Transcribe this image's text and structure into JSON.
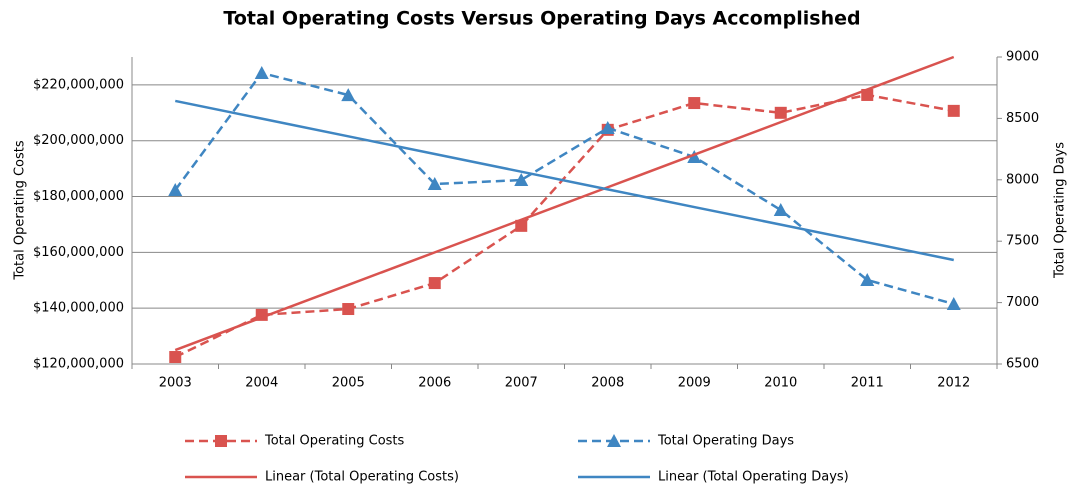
{
  "chart_data": {
    "type": "line",
    "title": "Total Operating Costs Versus Operating Days Accomplished",
    "y_label": "Total Operating Costs",
    "y2_label": "Total Operating Days",
    "categories": [
      "2003",
      "2004",
      "2005",
      "2006",
      "2007",
      "2008",
      "2009",
      "2010",
      "2011",
      "2012"
    ],
    "ylim": [
      120000000,
      230000000
    ],
    "yticks": [
      {
        "value": 120000000,
        "label": "$120,000,000"
      },
      {
        "value": 140000000,
        "label": "$140,000,000"
      },
      {
        "value": 160000000,
        "label": "$160,000,000"
      },
      {
        "value": 180000000,
        "label": "$180,000,000"
      },
      {
        "value": 200000000,
        "label": "$200,000,000"
      },
      {
        "value": 220000000,
        "label": "$220,000,000"
      }
    ],
    "y2lim": [
      6500,
      9000
    ],
    "y2ticks": [
      6500,
      7000,
      7500,
      8000,
      8500,
      9000
    ],
    "grid": true,
    "series": [
      {
        "name": "Total Operating Costs",
        "color": "#d9534f",
        "dashed": true,
        "marker": "square",
        "values": [
          122500000,
          137600000,
          139700000,
          149000000,
          169500000,
          203900000,
          213500000,
          210000000,
          216400000,
          210700000
        ]
      },
      {
        "name": "Total Operating Days",
        "color": "#3f86c2",
        "dashed": true,
        "marker": "triangle",
        "axis": "y2",
        "values": [
          7917,
          8870,
          8690,
          7966,
          7998,
          8422,
          8186,
          7754,
          7184,
          6989
        ]
      },
      {
        "name": "Linear (Total Operating Costs)",
        "color": "#d9534f",
        "dashed": false,
        "values": [
          125000000,
          136670000,
          148330000,
          160000000,
          171670000,
          183330000,
          195000000,
          206670000,
          218330000,
          230000000
        ]
      },
      {
        "name": "Linear (Total Operating Days)",
        "color": "#3f86c2",
        "dashed": false,
        "axis": "y2",
        "values": [
          8642,
          8498,
          8354,
          8210,
          8066,
          7922,
          7778,
          7635,
          7491,
          7347
        ]
      }
    ]
  }
}
